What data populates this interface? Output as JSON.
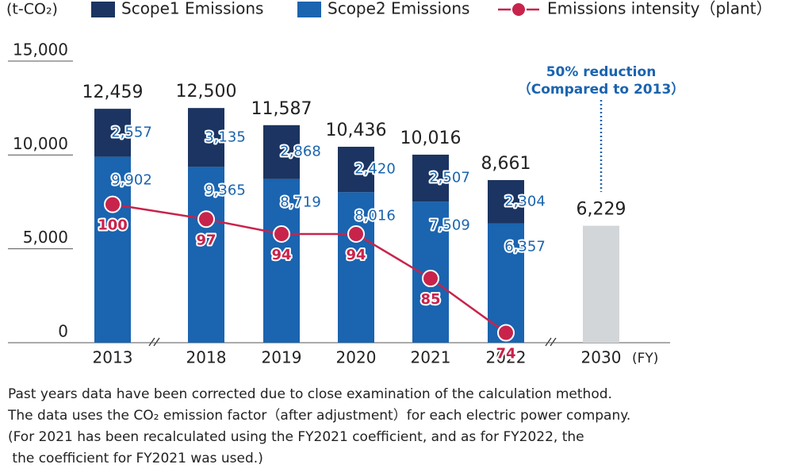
{
  "chart_data": {
    "type": "stacked-bar-line",
    "y_label": "(t-CO₂)",
    "x_label": "(FY)",
    "categories": [
      "2013",
      "2018",
      "2019",
      "2020",
      "2021",
      "2022",
      "2030"
    ],
    "ylim": [
      0,
      15000
    ],
    "yticks": [
      0,
      {
        "value": 5000,
        "label": "5,000"
      },
      {
        "value": 10000,
        "label": "10,000"
      },
      {
        "value": 15000,
        "label": "15,000"
      }
    ],
    "y2lim": [
      72,
      129
    ],
    "series": [
      {
        "name": "Scope1 Emissions",
        "color": "#1b3461",
        "values": [
          2557,
          3135,
          2868,
          2420,
          2507,
          2304,
          null
        ],
        "value_labels": [
          "2,557",
          "3,135",
          "2,868",
          "2,420",
          "2,507",
          "2,304",
          null
        ]
      },
      {
        "name": "Scope2 Emissions",
        "color": "#1a64b0",
        "values": [
          9902,
          9365,
          8719,
          8016,
          7509,
          6357,
          null
        ],
        "value_labels": [
          "9,902",
          "9,365",
          "8,719",
          "8,016",
          "7,509",
          "6,357",
          null
        ]
      },
      {
        "name": "Emissions intensity（plant）",
        "color": "#c8234b",
        "axis": "y2",
        "values": [
          100,
          97,
          94,
          94,
          85,
          74,
          null
        ]
      }
    ],
    "totals": {
      "values": [
        12459,
        12500,
        11587,
        10436,
        10016,
        8661,
        null
      ],
      "value_labels": [
        "12,459",
        "12,500",
        "11,587",
        "10,436",
        "10,016",
        "8,661",
        null
      ]
    },
    "target": {
      "value": 6229,
      "value_label": "6,229",
      "color": "#d3d6d8",
      "annotation": [
        "50% reduction",
        "（Compared to 2013）"
      ]
    },
    "notes": [
      "Past years data have been corrected due to close examination of the calculation method.",
      "The data uses the CO₂ emission factor（after adjustment）for each electric power company.",
      "(For 2021 has been recalculated using the FY2021 coefficient, and as for FY2022, the",
      " the coefficient for FY2021 was used.)"
    ]
  }
}
